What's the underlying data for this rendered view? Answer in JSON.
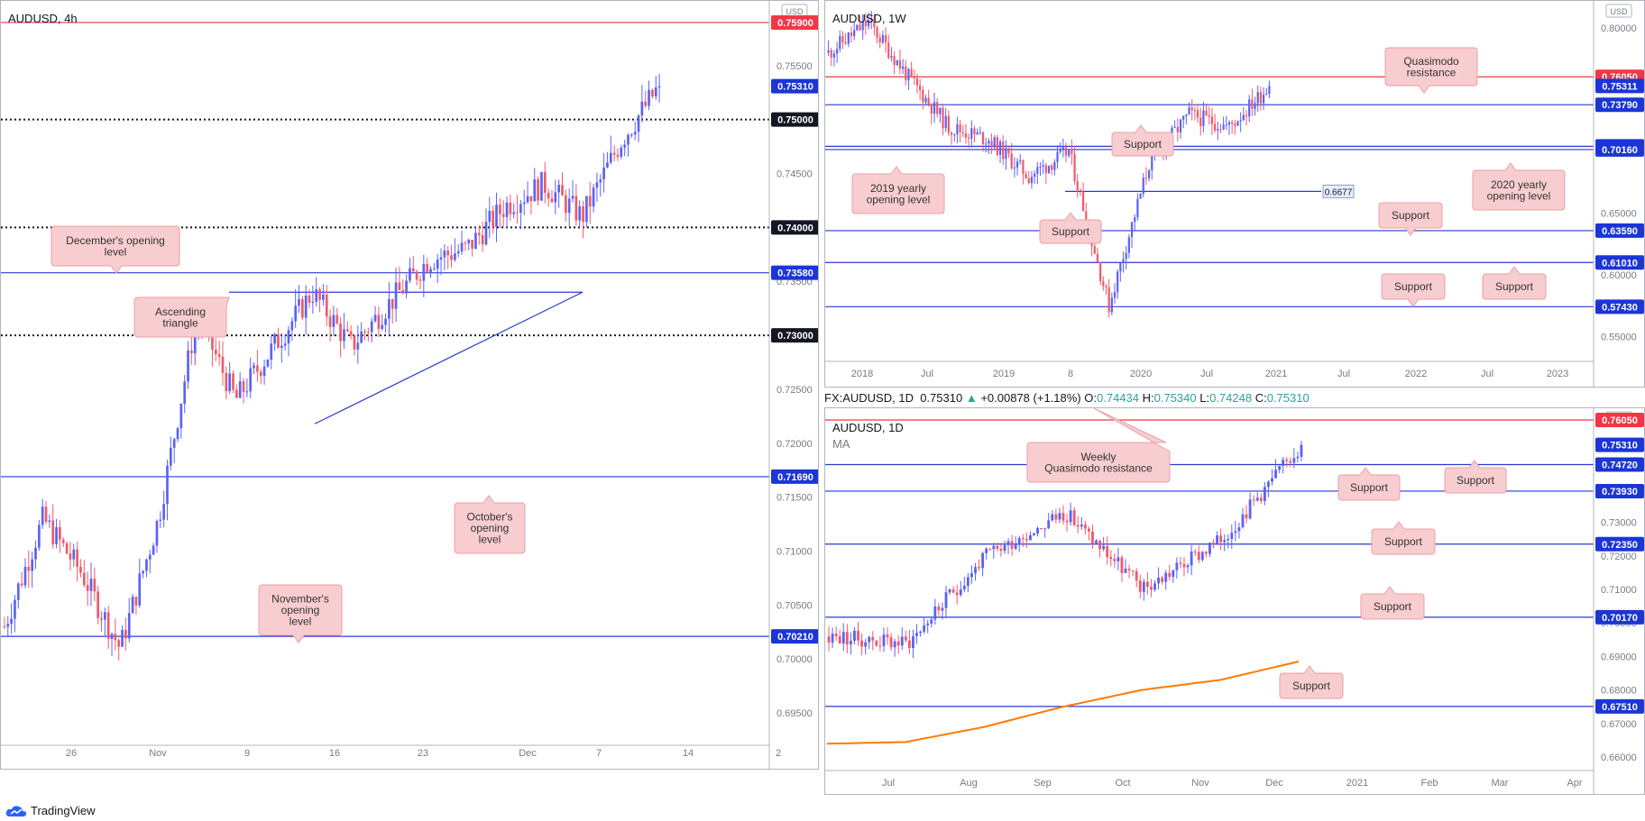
{
  "colors": {
    "up": "#5b63f5",
    "down": "#f05a6a",
    "support": "#2a3bd1",
    "resistance": "#f23645",
    "ma": "#ff7a00",
    "label_fill": "#f8cdd0",
    "label_stroke": "#e8a0a6",
    "blue_tag": "#1b35d6",
    "red_tag": "#f23645"
  },
  "footer": {
    "brand": "TradingView",
    "logo_icon": "tradingview-cloud-icon"
  },
  "panels": [
    {
      "id": "p4h",
      "title": "AUDUSD, 4h",
      "currency_badge": "USD",
      "ylim": [
        0.692,
        0.761
      ],
      "x_ticks": [
        "26",
        "Nov",
        "9",
        "16",
        "23",
        "Dec",
        "7",
        "14",
        "2"
      ],
      "y_ticks": [
        "0.69500",
        "0.70000",
        "0.70500",
        "0.71000",
        "0.71500",
        "0.72000",
        "0.72500",
        "0.73500",
        "0.74000",
        "0.74500",
        "0.75000",
        "0.75500"
      ],
      "tags": [
        {
          "value": 0.759,
          "label": "0.75900",
          "color": "red"
        },
        {
          "value": 0.7531,
          "label": "0.75310",
          "color": "blue"
        },
        {
          "value": 0.75,
          "label": "0.75000",
          "color": "black"
        },
        {
          "value": 0.74,
          "label": "0.74000",
          "color": "black"
        },
        {
          "value": 0.7358,
          "label": "0.73580",
          "color": "blue"
        },
        {
          "value": 0.73,
          "label": "0.73000",
          "color": "black"
        },
        {
          "value": 0.7169,
          "label": "0.71690",
          "color": "blue"
        },
        {
          "value": 0.7021,
          "label": "0.70210",
          "color": "blue"
        }
      ],
      "annotations": [
        "December's opening level",
        "Ascending triangle",
        "October's opening level",
        "November's opening level"
      ]
    },
    {
      "id": "pw",
      "title": "AUDUSD, 1W",
      "currency_badge": "USD",
      "ylim": [
        0.53,
        0.822
      ],
      "x_ticks": [
        "2018",
        "Jul",
        "2019",
        "8",
        "2020",
        "Jul",
        "2021",
        "Jul",
        "2022",
        "Jul",
        "2023"
      ],
      "y_ticks": [
        "0.55000",
        "0.60000",
        "0.65000",
        "0.80000"
      ],
      "tags": [
        {
          "value": 0.7605,
          "label": "0.76050",
          "color": "red"
        },
        {
          "value": 0.7531,
          "label": "0.75311",
          "color": "blue"
        },
        {
          "value": 0.7379,
          "label": "0.73790",
          "color": "blue"
        },
        {
          "value": 0.7042,
          "label": "0.70420",
          "color": "blue"
        },
        {
          "value": 0.7016,
          "label": "0.70160",
          "color": "blue"
        },
        {
          "value": 0.6359,
          "label": "0.63590",
          "color": "blue"
        },
        {
          "value": 0.6101,
          "label": "0.61010",
          "color": "blue"
        },
        {
          "value": 0.5743,
          "label": "0.57430",
          "color": "blue"
        }
      ],
      "inline_tag": "0.6677",
      "annotations": [
        "Quasimodo resistance",
        "Support",
        "2019 yearly opening level",
        "2020 yearly opening level",
        "Support",
        "Support",
        "Support",
        "Support"
      ]
    },
    {
      "id": "pd",
      "title": "AUDUSD, 1D",
      "indicator": "MA",
      "currency_badge": "USD",
      "ylim": [
        0.656,
        0.764
      ],
      "x_ticks": [
        "Jul",
        "Aug",
        "Sep",
        "Oct",
        "Nov",
        "Dec",
        "2021",
        "Feb",
        "Mar",
        "Apr"
      ],
      "y_ticks": [
        "0.66000",
        "0.67000",
        "0.68000",
        "0.69000",
        "0.70000",
        "0.71000",
        "0.72000",
        "0.73000"
      ],
      "tags": [
        {
          "value": 0.7605,
          "label": "0.76050",
          "color": "red"
        },
        {
          "value": 0.7531,
          "label": "0.75310",
          "color": "blue"
        },
        {
          "value": 0.7472,
          "label": "0.74720",
          "color": "blue"
        },
        {
          "value": 0.7393,
          "label": "0.73930",
          "color": "blue"
        },
        {
          "value": 0.7235,
          "label": "0.72350",
          "color": "blue"
        },
        {
          "value": 0.7017,
          "label": "0.70170",
          "color": "blue"
        },
        {
          "value": 0.6751,
          "label": "0.67510",
          "color": "blue"
        }
      ],
      "annotations": [
        "Weekly Quasimodo resistance",
        "Support",
        "Support",
        "Support",
        "Support",
        "Support"
      ]
    }
  ],
  "daily_header": {
    "symbol": "FX:AUDUSD, 1D",
    "last": "0.75310",
    "change": "+0.00878 (+1.18%)",
    "o_label": "O:",
    "o": "0.74434",
    "h_label": "H:",
    "h": "0.75340",
    "l_label": "L:",
    "l": "0.74248",
    "c_label": "C:",
    "c": "0.75310"
  },
  "chart_data": [
    {
      "type": "candlestick",
      "title": "AUDUSD, 4h",
      "ylim": [
        0.692,
        0.761
      ],
      "levels": [
        0.759,
        0.75,
        0.74,
        0.7358,
        0.73,
        0.7169,
        0.7021
      ],
      "key_path": [
        [
          "Oct 22",
          0.703
        ],
        [
          "Oct 26",
          0.713
        ],
        [
          "Oct 30",
          0.708
        ],
        [
          "Nov 2",
          0.701
        ],
        [
          "Nov 5",
          0.713
        ],
        [
          "Nov 9",
          0.732
        ],
        [
          "Nov 13",
          0.724
        ],
        [
          "Nov 16",
          0.729
        ],
        [
          "Nov 18",
          0.734
        ],
        [
          "Nov 20",
          0.729
        ],
        [
          "Nov 24",
          0.733
        ],
        [
          "Nov 27",
          0.737
        ],
        [
          "Dec 1",
          0.738
        ],
        [
          "Dec 4",
          0.742
        ],
        [
          "Dec 7",
          0.744
        ],
        [
          "Dec 9",
          0.741
        ],
        [
          "Dec 11",
          0.748
        ],
        [
          "Dec 14",
          0.7531
        ]
      ],
      "last": 0.7531
    },
    {
      "type": "candlestick",
      "title": "AUDUSD, 1W",
      "ylim": [
        0.53,
        0.822
      ],
      "levels": [
        0.7605,
        0.7379,
        0.7042,
        0.7016,
        0.6677,
        0.6359,
        0.6101,
        0.5743
      ],
      "key_path": [
        [
          "2018-01",
          0.78
        ],
        [
          "2018-02",
          0.805
        ],
        [
          "2018-05",
          0.76
        ],
        [
          "2018-09",
          0.72
        ],
        [
          "2019-01",
          0.71
        ],
        [
          "2019-08",
          0.68
        ],
        [
          "2020-01",
          0.7
        ],
        [
          "2020-03",
          0.575
        ],
        [
          "2020-06",
          0.69
        ],
        [
          "2020-09",
          0.73
        ],
        [
          "2020-11",
          0.72
        ],
        [
          "2020-12",
          0.753
        ]
      ],
      "last": 0.7531
    },
    {
      "type": "candlestick",
      "title": "AUDUSD, 1D",
      "ylim": [
        0.656,
        0.764
      ],
      "levels": [
        0.7605,
        0.7472,
        0.7393,
        0.7235,
        0.7017,
        0.6751
      ],
      "ma_series": [
        [
          "Jun",
          0.664
        ],
        [
          "Jul",
          0.6645
        ],
        [
          "Aug",
          0.669
        ],
        [
          "Sep",
          0.675
        ],
        [
          "Oct",
          0.68
        ],
        [
          "Nov",
          0.683
        ],
        [
          "Dec",
          0.6885
        ]
      ],
      "key_path": [
        [
          "Jun",
          0.696
        ],
        [
          "Jul",
          0.694
        ],
        [
          "Aug",
          0.72
        ],
        [
          "Sep",
          0.733
        ],
        [
          "Oct",
          0.71
        ],
        [
          "Nov",
          0.725
        ],
        [
          "Dec",
          0.7531
        ]
      ],
      "last": 0.7531
    }
  ]
}
